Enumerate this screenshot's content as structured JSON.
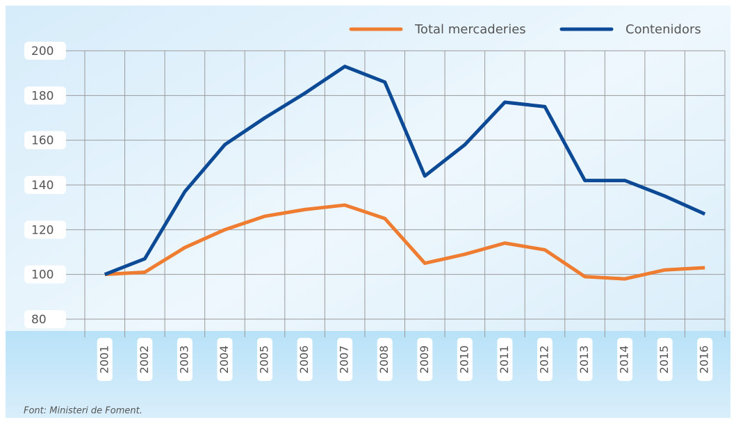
{
  "chart_data": {
    "type": "line",
    "categories": [
      "2001",
      "2002",
      "2003",
      "2004",
      "2005",
      "2006",
      "2007",
      "2008",
      "2009",
      "2010",
      "2011",
      "2012",
      "2013",
      "2014",
      "2015",
      "2016"
    ],
    "series": [
      {
        "name": "Total mercaderies",
        "color": "#ee7d31",
        "values": [
          100,
          101,
          112,
          120,
          126,
          129,
          131,
          125,
          105,
          109,
          114,
          111,
          99,
          98,
          102,
          103
        ]
      },
      {
        "name": "Contenidors",
        "color": "#0d4a96",
        "values": [
          100,
          107,
          137,
          158,
          170,
          181,
          193,
          186,
          144,
          158,
          177,
          175,
          142,
          142,
          135,
          127
        ]
      }
    ],
    "ylim": [
      80,
      200
    ],
    "yticks": [
      80,
      100,
      120,
      140,
      160,
      180,
      200
    ],
    "grid": true,
    "legend": "top-right",
    "source": "Font: Ministeri de Foment."
  }
}
